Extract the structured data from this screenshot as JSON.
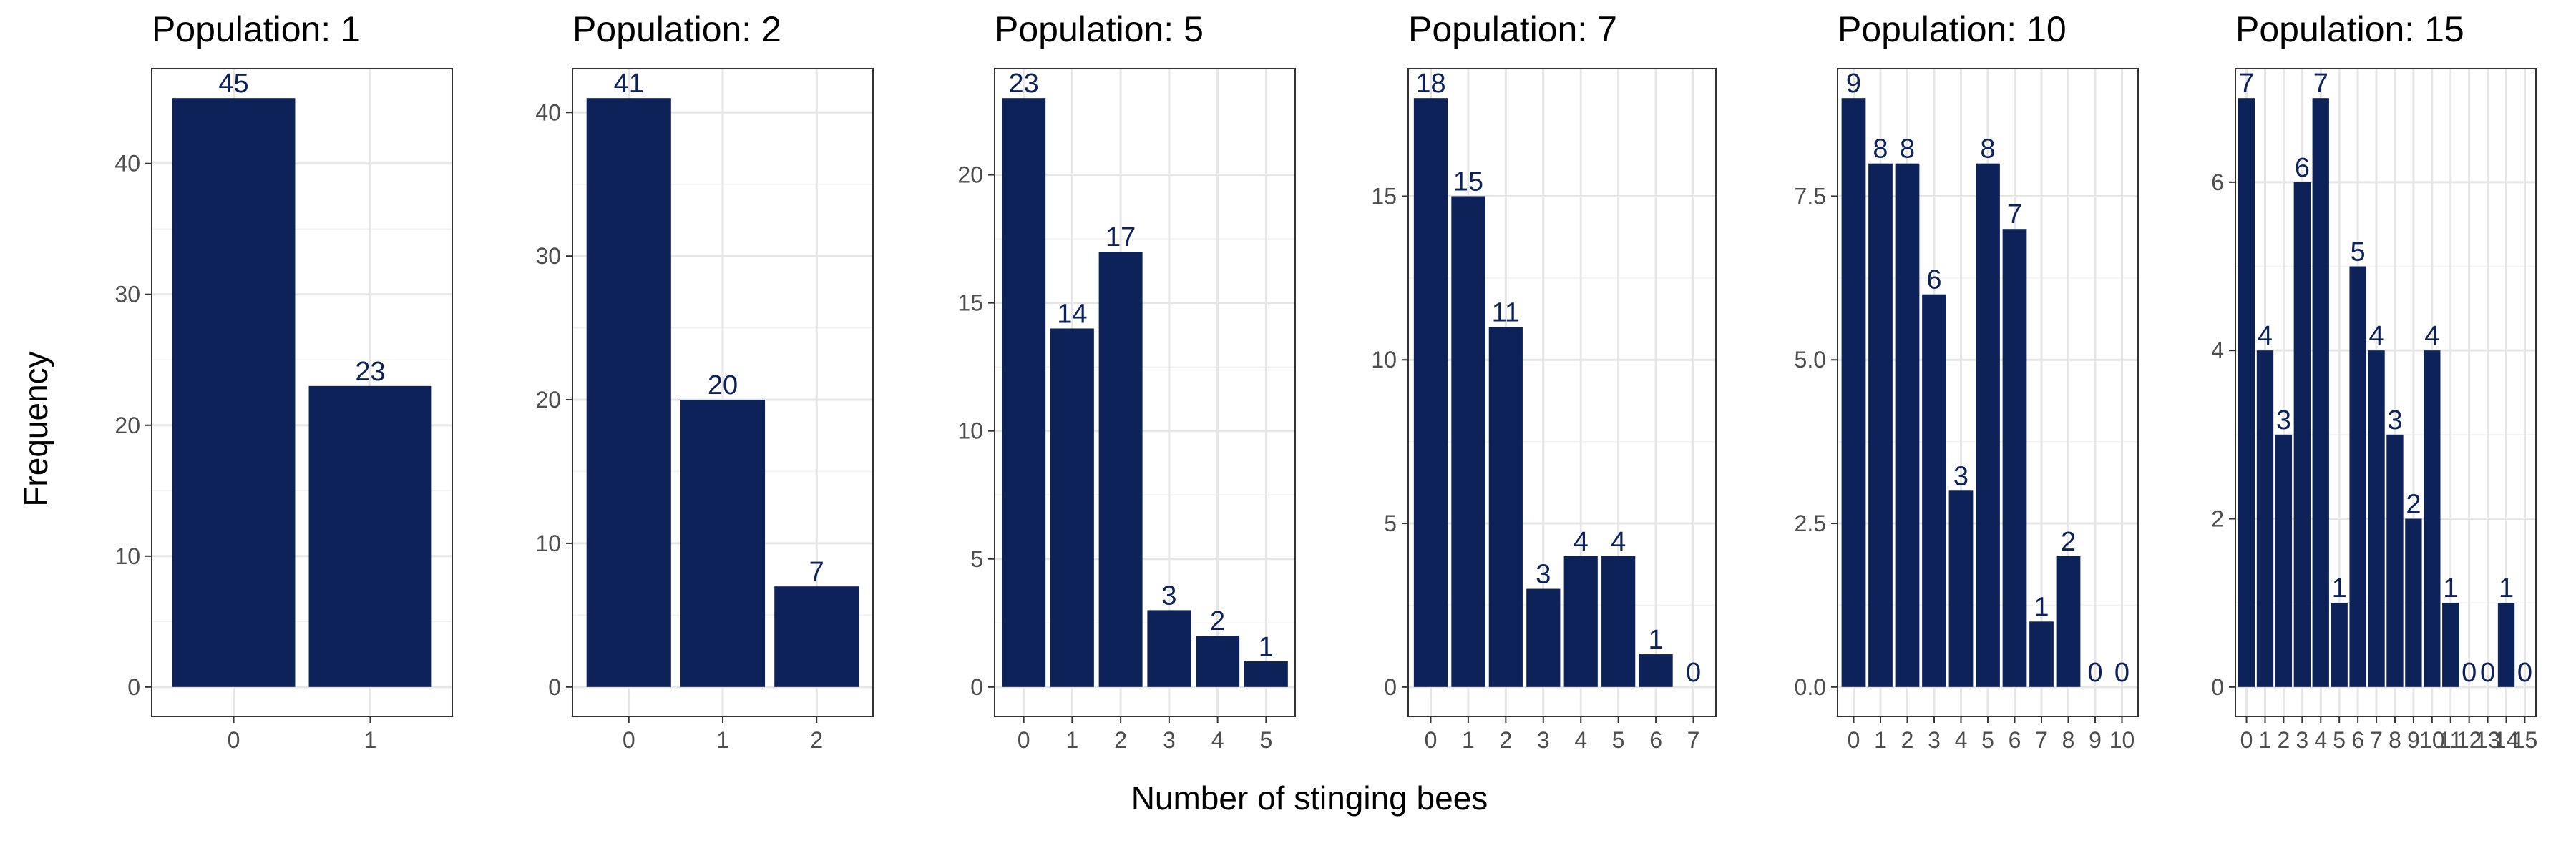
{
  "colors": {
    "bar": "#0d2259",
    "bar_label": "#0d2259"
  },
  "axis_titles": {
    "x": "Number of stinging bees",
    "y": "Frequency"
  },
  "chart_data": [
    {
      "type": "bar",
      "title": "Population: 1",
      "xlabel": "Number of stinging bees",
      "ylabel": "Frequency",
      "categories": [
        "0",
        "1"
      ],
      "values": [
        45,
        23
      ],
      "yticks": [
        0,
        10,
        20,
        30,
        40
      ],
      "ytick_labels": [
        "0",
        "10",
        "20",
        "30",
        "40"
      ],
      "ylim": [
        -2.25,
        47.25
      ]
    },
    {
      "type": "bar",
      "title": "Population: 2",
      "xlabel": "Number of stinging bees",
      "ylabel": "Frequency",
      "categories": [
        "0",
        "1",
        "2"
      ],
      "values": [
        41,
        20,
        7
      ],
      "yticks": [
        0,
        10,
        20,
        30,
        40
      ],
      "ytick_labels": [
        "0",
        "10",
        "20",
        "30",
        "40"
      ],
      "ylim": [
        -2.05,
        43.05
      ]
    },
    {
      "type": "bar",
      "title": "Population: 5",
      "xlabel": "Number of stinging bees",
      "ylabel": "Frequency",
      "categories": [
        "0",
        "1",
        "2",
        "3",
        "4",
        "5"
      ],
      "values": [
        23,
        14,
        17,
        3,
        2,
        1
      ],
      "yticks": [
        0,
        5,
        10,
        15,
        20
      ],
      "ytick_labels": [
        "0",
        "5",
        "10",
        "15",
        "20"
      ],
      "ylim": [
        -1.15,
        24.15
      ]
    },
    {
      "type": "bar",
      "title": "Population: 7",
      "xlabel": "Number of stinging bees",
      "ylabel": "Frequency",
      "categories": [
        "0",
        "1",
        "2",
        "3",
        "4",
        "5",
        "6",
        "7"
      ],
      "values": [
        18,
        15,
        11,
        3,
        4,
        4,
        1,
        0
      ],
      "yticks": [
        0,
        5,
        10,
        15
      ],
      "ytick_labels": [
        "0",
        "5",
        "10",
        "15"
      ],
      "ylim": [
        -0.9,
        18.9
      ]
    },
    {
      "type": "bar",
      "title": "Population: 10",
      "xlabel": "Number of stinging bees",
      "ylabel": "Frequency",
      "categories": [
        "0",
        "1",
        "2",
        "3",
        "4",
        "5",
        "6",
        "7",
        "8",
        "9",
        "10"
      ],
      "values": [
        9,
        8,
        8,
        6,
        3,
        8,
        7,
        1,
        2,
        0,
        0
      ],
      "yticks": [
        0,
        2.5,
        5,
        7.5
      ],
      "ytick_labels": [
        "0.0",
        "2.5",
        "5.0",
        "7.5"
      ],
      "ylim": [
        -0.45,
        9.45
      ]
    },
    {
      "type": "bar",
      "title": "Population: 15",
      "xlabel": "Number of stinging bees",
      "ylabel": "Frequency",
      "categories": [
        "0",
        "1",
        "2",
        "3",
        "4",
        "5",
        "6",
        "7",
        "8",
        "9",
        "10",
        "11",
        "12",
        "13",
        "14",
        "15"
      ],
      "values": [
        7,
        4,
        3,
        6,
        7,
        1,
        5,
        4,
        3,
        2,
        4,
        1,
        0,
        0,
        1,
        0
      ],
      "yticks": [
        0,
        2,
        4,
        6
      ],
      "ytick_labels": [
        "0",
        "2",
        "4",
        "6"
      ],
      "ylim": [
        -0.35,
        7.35
      ]
    }
  ]
}
